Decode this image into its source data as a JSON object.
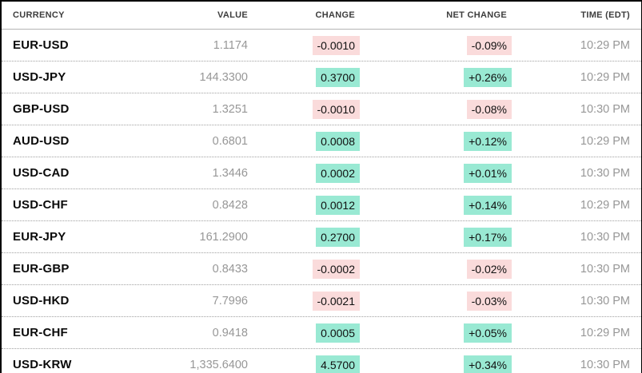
{
  "table": {
    "columns": [
      "CURRENCY",
      "VALUE",
      "CHANGE",
      "NET CHANGE",
      "TIME (EDT)"
    ],
    "rows": [
      {
        "currency": "EUR-USD",
        "value": "1.1174",
        "change": "-0.0010",
        "net_change": "-0.09%",
        "time": "10:29 PM",
        "direction": "down"
      },
      {
        "currency": "USD-JPY",
        "value": "144.3300",
        "change": "0.3700",
        "net_change": "+0.26%",
        "time": "10:29 PM",
        "direction": "up"
      },
      {
        "currency": "GBP-USD",
        "value": "1.3251",
        "change": "-0.0010",
        "net_change": "-0.08%",
        "time": "10:30 PM",
        "direction": "down"
      },
      {
        "currency": "AUD-USD",
        "value": "0.6801",
        "change": "0.0008",
        "net_change": "+0.12%",
        "time": "10:29 PM",
        "direction": "up"
      },
      {
        "currency": "USD-CAD",
        "value": "1.3446",
        "change": "0.0002",
        "net_change": "+0.01%",
        "time": "10:30 PM",
        "direction": "up"
      },
      {
        "currency": "USD-CHF",
        "value": "0.8428",
        "change": "0.0012",
        "net_change": "+0.14%",
        "time": "10:29 PM",
        "direction": "up"
      },
      {
        "currency": "EUR-JPY",
        "value": "161.2900",
        "change": "0.2700",
        "net_change": "+0.17%",
        "time": "10:30 PM",
        "direction": "up"
      },
      {
        "currency": "EUR-GBP",
        "value": "0.8433",
        "change": "-0.0002",
        "net_change": "-0.02%",
        "time": "10:30 PM",
        "direction": "down"
      },
      {
        "currency": "USD-HKD",
        "value": "7.7996",
        "change": "-0.0021",
        "net_change": "-0.03%",
        "time": "10:30 PM",
        "direction": "down"
      },
      {
        "currency": "EUR-CHF",
        "value": "0.9418",
        "change": "0.0005",
        "net_change": "+0.05%",
        "time": "10:29 PM",
        "direction": "up"
      },
      {
        "currency": "USD-KRW",
        "value": "1,335.6400",
        "change": "4.5700",
        "net_change": "+0.34%",
        "time": "10:30 PM",
        "direction": "up"
      }
    ]
  },
  "colors": {
    "positive_bg": "#99e9d3",
    "negative_bg": "#fadbdb",
    "header_text": "#3d3d3d",
    "muted_text": "#979797"
  }
}
